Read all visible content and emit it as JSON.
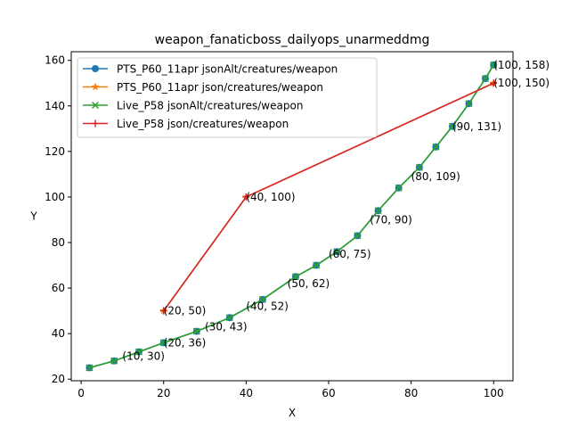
{
  "chart_data": {
    "type": "line",
    "title": "weapon_fanaticboss_dailyops_unarmeddmg",
    "xlabel": "X",
    "ylabel": "Y",
    "xlim": [
      -2.4,
      104.7
    ],
    "ylim": [
      19.3,
      163.8
    ],
    "xticks": [
      0,
      20,
      40,
      60,
      80,
      100
    ],
    "yticks": [
      20,
      40,
      60,
      80,
      100,
      120,
      140,
      160
    ],
    "legend_position": "top-left",
    "grid": false,
    "series": [
      {
        "name": "PTS_P60_11apr jsonAlt/creatures/weapon",
        "color": "#1f77b4",
        "marker": "circle",
        "x": [
          2,
          8,
          14,
          20,
          28,
          36,
          44,
          52,
          57,
          62,
          67,
          72,
          77,
          82,
          86,
          90,
          94,
          98,
          100
        ],
        "y": [
          25,
          28,
          32,
          36,
          41,
          47,
          55,
          65,
          70,
          76,
          83,
          94,
          104,
          113,
          122,
          131,
          141,
          152,
          158
        ]
      },
      {
        "name": "PTS_P60_11apr json/creatures/weapon",
        "color": "#ff7f0e",
        "marker": "star",
        "x": [
          20,
          40,
          100
        ],
        "y": [
          50,
          100,
          150
        ]
      },
      {
        "name": "Live_P58 jsonAlt/creatures/weapon",
        "color": "#2ca02c",
        "marker": "x",
        "x": [
          2,
          8,
          14,
          20,
          28,
          36,
          44,
          52,
          57,
          62,
          67,
          72,
          77,
          82,
          86,
          90,
          94,
          98,
          100
        ],
        "y": [
          25,
          28,
          32,
          36,
          41,
          47,
          55,
          65,
          70,
          76,
          83,
          94,
          104,
          113,
          122,
          131,
          141,
          152,
          158
        ]
      },
      {
        "name": "Live_P58 json/creatures/weapon",
        "color": "#d62728",
        "marker": "plus",
        "x": [
          20,
          40,
          100
        ],
        "y": [
          50,
          100,
          150
        ]
      }
    ],
    "annotations": [
      {
        "text": "(10, 30)",
        "x": 10,
        "y": 30
      },
      {
        "text": "(20, 36)",
        "x": 20,
        "y": 36
      },
      {
        "text": "(20, 50)",
        "x": 20,
        "y": 50
      },
      {
        "text": "(30, 43)",
        "x": 30,
        "y": 43
      },
      {
        "text": "(40, 52)",
        "x": 40,
        "y": 52
      },
      {
        "text": "(40, 100)",
        "x": 40,
        "y": 100
      },
      {
        "text": "(50, 62)",
        "x": 50,
        "y": 62
      },
      {
        "text": "(60, 75)",
        "x": 60,
        "y": 75
      },
      {
        "text": "(70, 90)",
        "x": 70,
        "y": 90
      },
      {
        "text": "(80, 109)",
        "x": 80,
        "y": 109
      },
      {
        "text": "(90, 131)",
        "x": 90,
        "y": 131
      },
      {
        "text": "(100, 150)",
        "x": 100,
        "y": 150
      },
      {
        "text": "(100, 158)",
        "x": 100,
        "y": 158
      }
    ]
  }
}
